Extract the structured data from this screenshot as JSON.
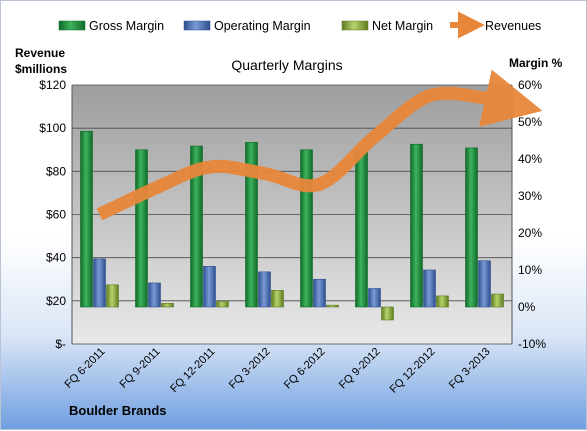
{
  "chart_data": {
    "type": "bar",
    "title": "Quarterly Margins",
    "left_axis_label_line1": "Revenue",
    "left_axis_label_line2": "$millions",
    "right_axis_label": "Margin %",
    "footer_label": "Boulder Brands",
    "categories": [
      "FQ 6-2011",
      "FQ 9-2011",
      "FQ 12-2011",
      "FQ 3-2012",
      "FQ 6-2012",
      "FQ 9-2012",
      "FQ 12-2012",
      "FQ 3-2013"
    ],
    "left_axis": {
      "ticks": [
        0,
        20,
        40,
        60,
        80,
        100,
        120
      ],
      "tick_labels": [
        "$-",
        "$20",
        "$40",
        "$60",
        "$80",
        "$100",
        "$120"
      ],
      "range": [
        0,
        120
      ]
    },
    "right_axis": {
      "ticks": [
        -10,
        0,
        10,
        20,
        30,
        40,
        50,
        60
      ],
      "tick_labels": [
        "-10%",
        "0%",
        "10%",
        "20%",
        "30%",
        "40%",
        "50%",
        "60%"
      ],
      "range": [
        -10,
        60
      ]
    },
    "series": [
      {
        "name": "Gross Margin",
        "kind": "bar",
        "axis": "right",
        "color": "#1f8a3a",
        "values": [
          47.5,
          42.5,
          43.5,
          44.5,
          42.5,
          42.0,
          44.0,
          43.0
        ]
      },
      {
        "name": "Operating Margin",
        "kind": "bar",
        "axis": "right",
        "color": "#4a6fb5",
        "values": [
          13.0,
          6.5,
          11.0,
          9.5,
          7.5,
          5.0,
          10.0,
          12.5
        ]
      },
      {
        "name": "Net Margin",
        "kind": "bar",
        "axis": "right",
        "color": "#8fb34a",
        "values": [
          6.0,
          1.0,
          1.5,
          4.5,
          0.5,
          -3.5,
          3.0,
          3.5
        ]
      },
      {
        "name": "Revenues",
        "kind": "line",
        "axis": "left",
        "color": "#e8873a",
        "values": [
          60,
          72,
          82,
          79,
          74,
          96,
          115,
          114
        ]
      }
    ],
    "legend_position": "top",
    "grid": true
  }
}
